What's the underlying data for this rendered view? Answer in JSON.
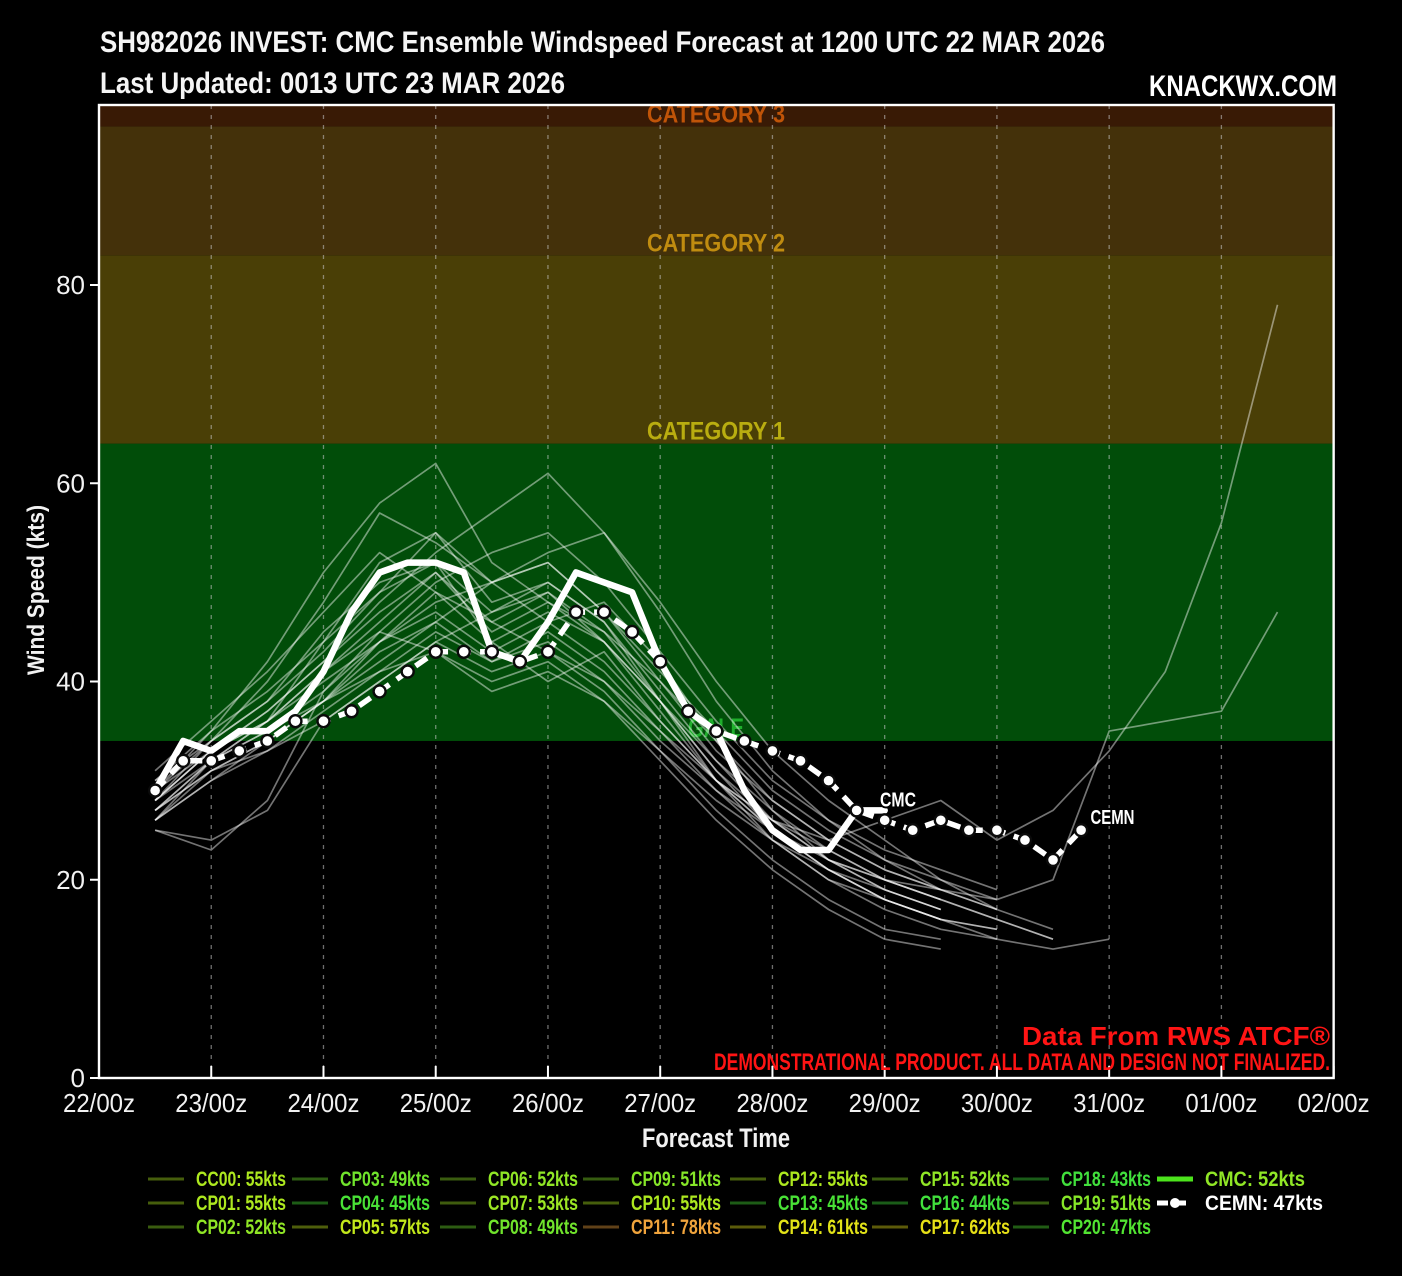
{
  "header": {
    "title_line1": "SH982026 INVEST: CMC Ensemble Windspeed Forecast at 1200 UTC 22 MAR 2026",
    "title_line2": "Last Updated: 0013 UTC 23 MAR 2026",
    "brand": "KNACKWX.COM"
  },
  "notices": {
    "source": "Data From RWS ATCF®",
    "disclaimer": "DEMONSTRATIONAL PRODUCT. ALL DATA AND DESIGN NOT FINALIZED."
  },
  "chart_data": {
    "type": "line",
    "title": "SH982026 INVEST: CMC Ensemble Windspeed Forecast at 1200 UTC 22 MAR 2026",
    "xlabel": "Forecast Time",
    "ylabel": "Wind Speed (kts)",
    "x_tick_labels": [
      "22/00z",
      "23/00z",
      "24/00z",
      "25/00z",
      "26/00z",
      "27/00z",
      "28/00z",
      "29/00z",
      "30/00z",
      "31/00z",
      "01/00z",
      "02/00z"
    ],
    "x_tick_hours": [
      0,
      24,
      48,
      72,
      96,
      120,
      144,
      168,
      192,
      216,
      240,
      264
    ],
    "time_axis_note": "hours after 22/00z",
    "y_ticks": [
      0,
      20,
      40,
      60,
      80
    ],
    "ylim": [
      0,
      98
    ],
    "grid": "vertical-dashed-daily",
    "legend_position": "below",
    "bands": [
      {
        "label": "GALE",
        "from_kts": 34,
        "to_kts": 64,
        "fill": "#014d09",
        "label_color": "#1fae2c"
      },
      {
        "label": "CATEGORY 1",
        "from_kts": 64,
        "to_kts": 83,
        "fill": "#4a3f06",
        "label_color": "#b9ad10"
      },
      {
        "label": "CATEGORY 2",
        "from_kts": 83,
        "to_kts": 96,
        "fill": "#44310a",
        "label_color": "#c08c10"
      },
      {
        "label": "CATEGORY 3",
        "from_kts": 96,
        "to_kts": 113,
        "fill": "#391a05",
        "label_color": "#c05408"
      }
    ],
    "series": [
      {
        "name": "CC00",
        "peak_kts": 55,
        "role": "member",
        "t0_hours": 12,
        "step_hours": 12,
        "values": [
          28,
          33,
          36,
          44,
          52,
          55,
          48,
          50,
          46,
          38,
          30,
          24,
          20,
          18,
          16,
          15
        ]
      },
      {
        "name": "CP01",
        "peak_kts": 55,
        "role": "member",
        "t0_hours": 12,
        "step_hours": 12,
        "values": [
          26,
          32,
          35,
          38,
          42,
          46,
          50,
          53,
          55,
          48,
          40,
          33,
          28,
          24,
          20,
          17,
          15
        ]
      },
      {
        "name": "CP02",
        "peak_kts": 52,
        "role": "member",
        "t0_hours": 12,
        "step_hours": 12,
        "values": [
          30,
          34,
          38,
          45,
          50,
          52,
          44,
          40,
          43,
          36,
          30,
          26,
          23,
          20,
          18,
          16,
          14
        ]
      },
      {
        "name": "CP03",
        "peak_kts": 49,
        "role": "member",
        "t0_hours": 12,
        "step_hours": 12,
        "values": [
          27,
          31,
          33,
          36,
          40,
          44,
          47,
          49,
          45,
          40,
          34,
          28,
          24,
          21,
          19,
          17
        ]
      },
      {
        "name": "CP04",
        "peak_kts": 45,
        "role": "member",
        "t0_hours": 12,
        "step_hours": 12,
        "values": [
          29,
          33,
          36,
          41,
          45,
          43,
          39,
          41,
          38,
          33,
          28,
          24,
          21,
          19,
          17
        ]
      },
      {
        "name": "CP05",
        "peak_kts": 57,
        "role": "member",
        "t0_hours": 12,
        "step_hours": 12,
        "values": [
          28,
          34,
          40,
          48,
          57,
          54,
          50,
          46,
          48,
          42,
          34,
          27,
          22,
          19,
          17
        ]
      },
      {
        "name": "CP06",
        "peak_kts": 52,
        "role": "member",
        "t0_hours": 12,
        "step_hours": 12,
        "values": [
          26,
          30,
          34,
          38,
          44,
          48,
          50,
          52,
          47,
          41,
          35,
          29,
          25,
          22,
          20,
          18
        ]
      },
      {
        "name": "CP07",
        "peak_kts": 53,
        "role": "member",
        "t0_hours": 12,
        "step_hours": 12,
        "values": [
          31,
          36,
          41,
          47,
          53,
          49,
          44,
          47,
          44,
          38,
          31,
          26,
          22,
          20,
          18,
          16,
          14
        ]
      },
      {
        "name": "CP08",
        "peak_kts": 49,
        "role": "member",
        "t0_hours": 12,
        "step_hours": 12,
        "values": [
          27,
          32,
          35,
          39,
          44,
          49,
          46,
          43,
          40,
          35,
          30,
          25,
          21,
          18,
          16,
          14,
          13,
          14
        ]
      },
      {
        "name": "CP09",
        "peak_kts": 51,
        "role": "member",
        "t0_hours": 12,
        "step_hours": 12,
        "values": [
          28,
          33,
          37,
          42,
          47,
          51,
          45,
          48,
          44,
          38,
          32,
          27,
          23,
          20,
          18
        ]
      },
      {
        "name": "CP10",
        "peak_kts": 55,
        "role": "member",
        "t0_hours": 12,
        "step_hours": 12,
        "values": [
          25,
          23,
          28,
          39,
          45,
          50,
          53,
          55,
          50,
          43,
          36,
          30,
          26,
          23,
          21,
          19
        ]
      },
      {
        "name": "CP11",
        "peak_kts": 78,
        "role": "member",
        "t0_hours": 12,
        "step_hours": 12,
        "values": [
          27,
          32,
          36,
          40,
          44,
          47,
          43,
          46,
          42,
          36,
          30,
          26,
          24,
          26,
          28,
          24,
          27,
          33,
          41,
          56,
          78
        ]
      },
      {
        "name": "CP12",
        "peak_kts": 55,
        "role": "member",
        "t0_hours": 12,
        "step_hours": 12,
        "values": [
          29,
          34,
          38,
          43,
          49,
          55,
          50,
          52,
          47,
          40,
          33,
          28,
          24,
          21,
          19
        ]
      },
      {
        "name": "CP13",
        "peak_kts": 45,
        "role": "member",
        "t0_hours": 12,
        "step_hours": 12,
        "values": [
          26,
          30,
          33,
          37,
          41,
          45,
          42,
          44,
          40,
          34,
          29,
          24,
          20,
          17,
          15,
          14
        ]
      },
      {
        "name": "CP14",
        "peak_kts": 61,
        "role": "member",
        "t0_hours": 12,
        "step_hours": 12,
        "values": [
          28,
          33,
          37,
          42,
          48,
          53,
          57,
          61,
          55,
          47,
          38,
          31,
          26,
          22,
          19,
          17
        ]
      },
      {
        "name": "CP15",
        "peak_kts": 52,
        "role": "member",
        "t0_hours": 12,
        "step_hours": 12,
        "values": [
          30,
          35,
          39,
          44,
          49,
          52,
          47,
          50,
          46,
          39,
          32,
          26,
          22,
          19,
          17
        ]
      },
      {
        "name": "CP16",
        "peak_kts": 44,
        "role": "member",
        "t0_hours": 12,
        "step_hours": 12,
        "values": [
          25,
          24,
          27,
          36,
          40,
          44,
          41,
          43,
          39,
          33,
          27,
          22,
          18,
          15,
          14
        ]
      },
      {
        "name": "CP17",
        "peak_kts": 62,
        "role": "member",
        "t0_hours": 12,
        "step_hours": 12,
        "values": [
          29,
          35,
          42,
          51,
          58,
          62,
          52,
          48,
          45,
          38,
          31,
          25,
          21,
          18,
          16
        ]
      },
      {
        "name": "CP18",
        "peak_kts": 43,
        "role": "member",
        "t0_hours": 12,
        "step_hours": 12,
        "values": [
          27,
          31,
          34,
          38,
          41,
          43,
          40,
          42,
          38,
          32,
          26,
          21,
          17,
          14,
          13
        ]
      },
      {
        "name": "CP19",
        "peak_kts": 51,
        "role": "member",
        "t0_hours": 12,
        "step_hours": 12,
        "values": [
          28,
          32,
          36,
          41,
          46,
          51,
          46,
          49,
          44,
          37,
          30,
          25,
          21,
          18,
          16,
          15
        ]
      },
      {
        "name": "CP20",
        "peak_kts": 47,
        "role": "member",
        "t0_hours": 12,
        "step_hours": 12,
        "values": [
          26,
          31,
          34,
          38,
          43,
          46,
          42,
          45,
          41,
          35,
          29,
          25,
          22,
          20,
          19,
          18,
          20,
          35,
          36,
          37,
          47
        ]
      },
      {
        "name": "CMC",
        "peak_kts": 52,
        "role": "cmc",
        "t0_hours": 12,
        "step_hours": 6,
        "values": [
          29,
          34,
          33,
          35,
          35,
          37,
          41,
          47,
          51,
          52,
          52,
          51,
          43,
          42,
          46,
          51,
          50,
          49,
          42,
          37,
          35,
          29,
          25,
          23,
          23,
          27,
          27
        ]
      },
      {
        "name": "CEMN",
        "peak_kts": 47,
        "role": "mean",
        "t0_hours": 12,
        "step_hours": 6,
        "values": [
          29,
          32,
          32,
          33,
          34,
          36,
          36,
          37,
          39,
          41,
          43,
          43,
          43,
          42,
          43,
          47,
          47,
          45,
          42,
          37,
          35,
          34,
          33,
          32,
          30,
          27,
          26,
          25,
          26,
          25,
          25,
          24,
          22,
          25
        ]
      }
    ],
    "annotations": [
      {
        "text": "CMC",
        "hours": 167,
        "kts": 27.4
      },
      {
        "text": "CEMN",
        "hours": 212,
        "kts": 25.6
      }
    ]
  },
  "legend": {
    "columns": [
      [
        {
          "label": "CC00",
          "value": "55kts",
          "color": "#ade81f",
          "swatch": "#465e0c",
          "style": "member"
        },
        {
          "label": "CP01",
          "value": "55kts",
          "color": "#ade81f",
          "swatch": "#465e0c",
          "style": "member"
        },
        {
          "label": "CP02",
          "value": "52kts",
          "color": "#90e626",
          "swatch": "#3a5c0f",
          "style": "member"
        }
      ],
      [
        {
          "label": "CP03",
          "value": "49kts",
          "color": "#70e42c",
          "swatch": "#2d5c12",
          "style": "member"
        },
        {
          "label": "CP04",
          "value": "45kts",
          "color": "#49e236",
          "swatch": "#1d5c16",
          "style": "member"
        },
        {
          "label": "CP05",
          "value": "57kts",
          "color": "#c2e81b",
          "swatch": "#4e5e0b",
          "style": "member"
        }
      ],
      [
        {
          "label": "CP06",
          "value": "52kts",
          "color": "#90e626",
          "swatch": "#3a5c0f",
          "style": "member"
        },
        {
          "label": "CP07",
          "value": "53kts",
          "color": "#9ce624",
          "swatch": "#3f5c0e",
          "style": "member"
        },
        {
          "label": "CP08",
          "value": "49kts",
          "color": "#70e42c",
          "swatch": "#2d5c12",
          "style": "member"
        }
      ],
      [
        {
          "label": "CP09",
          "value": "51kts",
          "color": "#86e628",
          "swatch": "#365c10",
          "style": "member"
        },
        {
          "label": "CP10",
          "value": "55kts",
          "color": "#ade81f",
          "swatch": "#465e0c",
          "style": "member"
        },
        {
          "label": "CP11",
          "value": "78kts",
          "color": "#f0a43c",
          "swatch": "#604118",
          "style": "member"
        }
      ],
      [
        {
          "label": "CP12",
          "value": "55kts",
          "color": "#ade81f",
          "swatch": "#465e0c",
          "style": "member"
        },
        {
          "label": "CP13",
          "value": "45kts",
          "color": "#49e236",
          "swatch": "#1d5c16",
          "style": "member"
        },
        {
          "label": "CP14",
          "value": "61kts",
          "color": "#e2e318",
          "swatch": "#5b5b0a",
          "style": "member"
        }
      ],
      [
        {
          "label": "CP15",
          "value": "52kts",
          "color": "#90e626",
          "swatch": "#3a5c0f",
          "style": "member"
        },
        {
          "label": "CP16",
          "value": "44kts",
          "color": "#41e03c",
          "swatch": "#1a5c18",
          "style": "member"
        },
        {
          "label": "CP17",
          "value": "62kts",
          "color": "#e6e017",
          "swatch": "#5c5a09",
          "style": "member"
        }
      ],
      [
        {
          "label": "CP18",
          "value": "43kts",
          "color": "#41e03c",
          "swatch": "#1a5c18",
          "style": "member"
        },
        {
          "label": "CP19",
          "value": "51kts",
          "color": "#86e628",
          "swatch": "#365c10",
          "style": "member"
        },
        {
          "label": "CP20",
          "value": "47kts",
          "color": "#52e432",
          "swatch": "#215c14",
          "style": "member"
        }
      ],
      [
        {
          "label": "CMC",
          "value": "52kts",
          "color": "#90e626",
          "swatch": "#4ce41c",
          "style": "cmc"
        },
        {
          "label": "CEMN",
          "value": "47kts",
          "color": "#ffffff",
          "swatch": "#ffffff",
          "style": "mean"
        }
      ]
    ]
  }
}
